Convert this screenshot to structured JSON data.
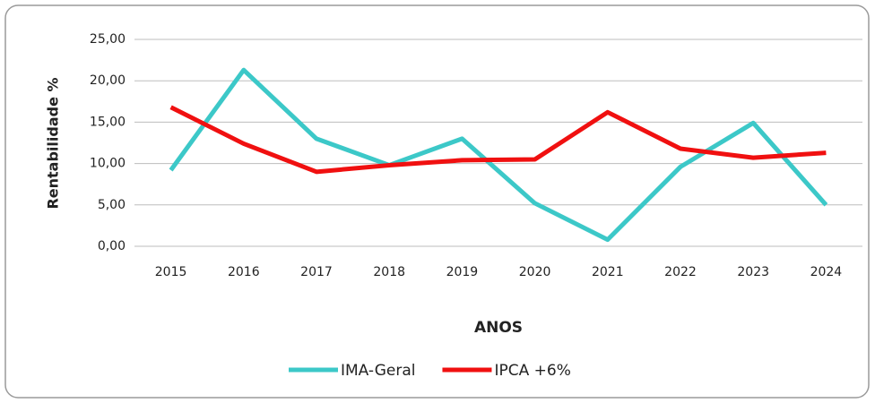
{
  "chart_data": {
    "type": "line",
    "x_label": "ANOS",
    "y_label": "Rentabilidade %",
    "categories": [
      "2015",
      "2016",
      "2017",
      "2018",
      "2019",
      "2020",
      "2021",
      "2022",
      "2023",
      "2024"
    ],
    "series": [
      {
        "name": "IMA-Geral",
        "color": "#3cc8c8",
        "values": [
          9.2,
          21.3,
          13.0,
          9.8,
          13.0,
          5.2,
          0.8,
          9.6,
          14.9,
          5.0
        ]
      },
      {
        "name": "IPCA +6%",
        "color": "#f01010",
        "values": [
          16.8,
          12.4,
          9.0,
          9.8,
          10.4,
          10.5,
          16.2,
          11.8,
          10.7,
          11.3
        ]
      }
    ],
    "ylim": [
      0,
      25
    ],
    "yticks": [
      {
        "value": 0,
        "label": "0,00"
      },
      {
        "value": 5,
        "label": "5,00"
      },
      {
        "value": 10,
        "label": "10,00"
      },
      {
        "value": 15,
        "label": "15,00"
      },
      {
        "value": 20,
        "label": "20,00"
      },
      {
        "value": 25,
        "label": "25,00"
      }
    ],
    "grid": true,
    "legend": "bottom"
  }
}
